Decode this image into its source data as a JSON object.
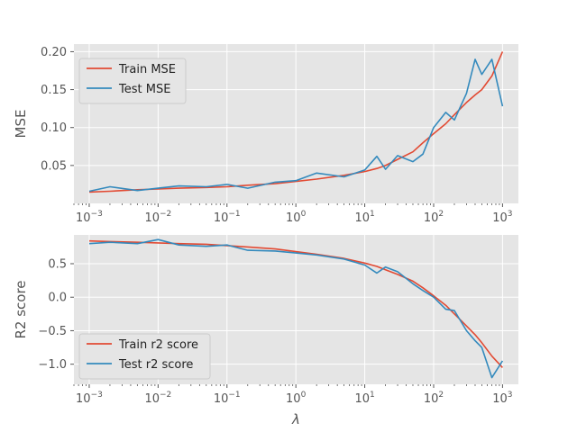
{
  "chart_data": [
    {
      "type": "line",
      "title": "",
      "xlabel": "",
      "ylabel": "MSE",
      "x_scale": "log",
      "xlim": [
        0.0006,
        1700
      ],
      "ylim": [
        0.0,
        0.21
      ],
      "xticks": [
        "10^-3",
        "10^-2",
        "10^-1",
        "10^0",
        "10^1",
        "10^2",
        "10^3"
      ],
      "yticks": [
        0.05,
        0.1,
        0.15,
        0.2
      ],
      "ytick_labels": [
        "0.05",
        "0.10",
        "0.15",
        "0.20"
      ],
      "grid": true,
      "legend_position": "upper-left",
      "x": [
        0.001,
        0.002,
        0.005,
        0.01,
        0.02,
        0.05,
        0.1,
        0.2,
        0.5,
        1,
        2,
        5,
        10,
        15,
        20,
        30,
        50,
        70,
        100,
        150,
        200,
        300,
        400,
        500,
        700,
        1000
      ],
      "series": [
        {
          "name": "Train MSE",
          "color": "#E24A33",
          "values": [
            0.015,
            0.016,
            0.018,
            0.019,
            0.02,
            0.021,
            0.022,
            0.024,
            0.026,
            0.029,
            0.032,
            0.037,
            0.042,
            0.046,
            0.05,
            0.058,
            0.068,
            0.08,
            0.092,
            0.105,
            0.117,
            0.133,
            0.143,
            0.15,
            0.168,
            0.2
          ]
        },
        {
          "name": "Test MSE",
          "color": "#348ABD",
          "values": [
            0.016,
            0.022,
            0.017,
            0.02,
            0.023,
            0.022,
            0.025,
            0.02,
            0.028,
            0.03,
            0.04,
            0.035,
            0.044,
            0.062,
            0.045,
            0.063,
            0.055,
            0.065,
            0.1,
            0.12,
            0.11,
            0.145,
            0.19,
            0.17,
            0.19,
            0.128
          ]
        }
      ]
    },
    {
      "type": "line",
      "title": "",
      "xlabel": "λ",
      "ylabel": "R2 score",
      "x_scale": "log",
      "xlim": [
        0.0006,
        1700
      ],
      "ylim": [
        -1.3,
        0.93
      ],
      "xticks": [
        "10^-3",
        "10^-2",
        "10^-1",
        "10^0",
        "10^1",
        "10^2",
        "10^3"
      ],
      "yticks": [
        0.5,
        0.0,
        -0.5,
        -1.0
      ],
      "ytick_labels": [
        "0.5",
        "0.0",
        "−0.5",
        "−1.0"
      ],
      "grid": true,
      "legend_position": "lower-left",
      "x": [
        0.001,
        0.002,
        0.005,
        0.01,
        0.02,
        0.05,
        0.1,
        0.2,
        0.5,
        1,
        2,
        5,
        10,
        15,
        20,
        30,
        50,
        70,
        100,
        150,
        200,
        300,
        400,
        500,
        700,
        1000
      ],
      "series": [
        {
          "name": "Train r2 score",
          "color": "#E24A33",
          "values": [
            0.84,
            0.83,
            0.82,
            0.81,
            0.8,
            0.79,
            0.77,
            0.75,
            0.72,
            0.68,
            0.64,
            0.58,
            0.51,
            0.46,
            0.41,
            0.34,
            0.24,
            0.14,
            0.02,
            -0.12,
            -0.25,
            -0.43,
            -0.56,
            -0.68,
            -0.88,
            -1.05
          ]
        },
        {
          "name": "Test r2 score",
          "color": "#348ABD",
          "values": [
            0.8,
            0.82,
            0.8,
            0.86,
            0.78,
            0.76,
            0.78,
            0.7,
            0.69,
            0.66,
            0.63,
            0.57,
            0.48,
            0.36,
            0.45,
            0.38,
            0.2,
            0.1,
            0.0,
            -0.18,
            -0.2,
            -0.5,
            -0.65,
            -0.75,
            -1.2,
            -0.95
          ]
        }
      ]
    }
  ]
}
